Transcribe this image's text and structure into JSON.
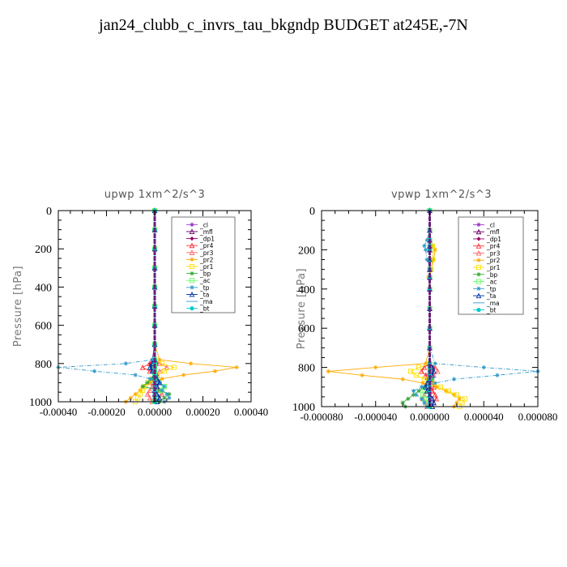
{
  "title": "jan24_clubb_c_invrs_tau_bkgndp  BUDGET at245E,-7N",
  "chart_data": [
    {
      "type": "line",
      "title": "upwp   1xm^2/s^3",
      "ylabel": "Pressure [hPa]",
      "xlabel": "",
      "ylim": [
        1000,
        0
      ],
      "xlim": [
        -0.0004,
        0.0004
      ],
      "xticks": [
        -0.0004,
        -0.0002,
        0,
        0.0002,
        0.0004
      ],
      "xtick_labels": [
        "-0.00040",
        "-0.00020",
        "0.00000",
        "0.00020",
        "0.00040"
      ],
      "yticks": [
        0,
        200,
        400,
        600,
        800,
        1000
      ],
      "ytick_labels": [
        "0",
        "200",
        "400",
        "600",
        "800",
        "1000"
      ],
      "legend_position": "top-right",
      "grid": false,
      "y": [
        0,
        100,
        200,
        300,
        400,
        500,
        600,
        700,
        780,
        800,
        820,
        840,
        860,
        880,
        900,
        920,
        940,
        960,
        980,
        1000
      ],
      "series": [
        {
          "name": "_cl",
          "color": "#9933cc",
          "marker": "star",
          "values": [
            0,
            0,
            0,
            0,
            0,
            0,
            0,
            0,
            0,
            1e-05,
            0,
            -1e-05,
            0,
            0,
            0,
            0,
            0,
            0,
            0,
            0
          ]
        },
        {
          "name": "_mfl",
          "color": "#660066",
          "marker": "triangle",
          "values": [
            0,
            0,
            0,
            0,
            0,
            0,
            0,
            0,
            0,
            0,
            0,
            0,
            0,
            0,
            0,
            0,
            0,
            0,
            0,
            0
          ]
        },
        {
          "name": "_dp1",
          "color": "#990066",
          "marker": "diamond",
          "values": [
            0,
            0,
            0,
            0,
            0,
            0,
            0,
            0,
            -1e-05,
            -2e-05,
            -1e-05,
            0,
            1e-05,
            0,
            0,
            0,
            0,
            0,
            0,
            0
          ]
        },
        {
          "name": "_pr4",
          "color": "#ff3333",
          "marker": "triangle",
          "values": [
            0,
            0,
            0,
            0,
            0,
            0,
            0,
            0,
            0,
            -2e-05,
            -5e-05,
            -2e-05,
            0,
            1e-05,
            2e-05,
            1e-05,
            2e-05,
            3e-05,
            2e-05,
            1e-05
          ]
        },
        {
          "name": "_pr3",
          "color": "#ff6666",
          "marker": "triangle",
          "values": [
            0,
            0,
            0,
            0,
            0,
            0,
            0,
            0,
            0,
            2e-05,
            5e-05,
            2e-05,
            0,
            -1e-05,
            -2e-05,
            -1e-05,
            -2e-05,
            -3e-05,
            -2e-05,
            -1e-05
          ]
        },
        {
          "name": "_pr2",
          "color": "#ffaa00",
          "marker": "star",
          "values": [
            0,
            0,
            0,
            0,
            0,
            0,
            0,
            0,
            2e-05,
            0.00015,
            0.00034,
            0.00025,
            0.00012,
            3e-05,
            -2e-05,
            -5e-05,
            -6e-05,
            -8e-05,
            -0.0001,
            -0.00012
          ]
        },
        {
          "name": "_pr1",
          "color": "#ffdd00",
          "marker": "square",
          "values": [
            0,
            0,
            0,
            0,
            0,
            0,
            0,
            0,
            0,
            3e-05,
            8e-05,
            4e-05,
            1e-05,
            -1e-05,
            -3e-05,
            -4e-05,
            -5e-05,
            -6e-05,
            -7e-05,
            -8e-05
          ]
        },
        {
          "name": "_bp",
          "color": "#33aa33",
          "marker": "star",
          "values": [
            0,
            0,
            0,
            0,
            0,
            0,
            0,
            0,
            0,
            0,
            0,
            0,
            0,
            -1e-05,
            -3e-05,
            -5e-05,
            2e-05,
            6e-05,
            4e-05,
            2e-05
          ]
        },
        {
          "name": "_ac",
          "color": "#66ff66",
          "marker": "square",
          "values": [
            0,
            0,
            0,
            0,
            0,
            0,
            0,
            0,
            0,
            0,
            0,
            0,
            0,
            1e-05,
            2e-05,
            4e-05,
            3e-05,
            2e-05,
            1e-05,
            0
          ]
        },
        {
          "name": "_tp",
          "color": "#3399cc",
          "marker": "star",
          "values": [
            0,
            0,
            0,
            0,
            0,
            0,
            0,
            0,
            -1e-05,
            -0.00012,
            -0.0004,
            -0.00025,
            -8e-05,
            -2e-05,
            2e-05,
            4e-05,
            3e-05,
            5e-05,
            6e-05,
            4e-05
          ]
        },
        {
          "name": "_ta",
          "color": "#0033aa",
          "marker": "triangle",
          "values": [
            0,
            0,
            0,
            0,
            0,
            0,
            0,
            0,
            0,
            -1e-05,
            -2e-05,
            -1e-05,
            0,
            1e-05,
            2e-05,
            1e-05,
            0,
            1e-05,
            2e-05,
            1e-05
          ]
        },
        {
          "name": "_ma",
          "color": "#3399cc",
          "marker": "none",
          "values": [
            0,
            0,
            0,
            0,
            0,
            0,
            0,
            0,
            0,
            0,
            0,
            0,
            0,
            0,
            0,
            0,
            0,
            0,
            0,
            0
          ]
        },
        {
          "name": "_bt",
          "color": "#00cccc",
          "marker": "circle",
          "values": [
            0,
            0,
            0,
            0,
            0,
            0,
            0,
            0,
            0,
            0,
            0,
            0,
            0,
            0,
            0,
            0,
            0,
            0,
            0,
            0
          ]
        }
      ]
    },
    {
      "type": "line",
      "title": "vpwp   1xm^2/s^3",
      "ylabel": "Pressure [hPa]",
      "xlabel": "",
      "ylim": [
        1000,
        0
      ],
      "xlim": [
        -8e-05,
        8e-05
      ],
      "xticks": [
        -8e-05,
        -4e-05,
        0,
        4e-05,
        8e-05
      ],
      "xtick_labels": [
        "-0.000080",
        "-0.000040",
        "0.000000",
        "0.000040",
        "0.000080"
      ],
      "yticks": [
        0,
        200,
        400,
        600,
        800,
        1000
      ],
      "ytick_labels": [
        "0",
        "200",
        "400",
        "600",
        "800",
        "1000"
      ],
      "legend_position": "top-right",
      "grid": false,
      "y": [
        0,
        100,
        150,
        180,
        200,
        250,
        300,
        340,
        400,
        500,
        600,
        700,
        780,
        800,
        820,
        840,
        860,
        880,
        900,
        920,
        940,
        960,
        980,
        1000
      ],
      "series": [
        {
          "name": "_cl",
          "color": "#9933cc",
          "marker": "star",
          "values": [
            0,
            0,
            0,
            0,
            0,
            0,
            0,
            0,
            0,
            0,
            0,
            0,
            0,
            2e-06,
            0,
            -2e-06,
            0,
            0,
            0,
            0,
            0,
            0,
            0,
            0
          ]
        },
        {
          "name": "_mfl",
          "color": "#660066",
          "marker": "triangle",
          "values": [
            0,
            0,
            0,
            0,
            0,
            0,
            0,
            0,
            0,
            0,
            0,
            0,
            0,
            0,
            0,
            0,
            0,
            0,
            0,
            0,
            0,
            0,
            0,
            0
          ]
        },
        {
          "name": "_dp1",
          "color": "#990066",
          "marker": "diamond",
          "values": [
            0,
            0,
            0,
            0,
            0,
            0,
            0,
            0,
            0,
            0,
            0,
            0,
            0,
            3e-06,
            2e-06,
            0,
            -2e-06,
            0,
            0,
            0,
            0,
            0,
            0,
            0
          ]
        },
        {
          "name": "_pr4",
          "color": "#ff3333",
          "marker": "triangle",
          "values": [
            0,
            0,
            0,
            0,
            0,
            0,
            0,
            0,
            0,
            0,
            0,
            0,
            0,
            -4e-06,
            -6e-06,
            -3e-06,
            0,
            2e-06,
            3e-06,
            2e-06,
            4e-06,
            5e-06,
            3e-06,
            2e-06
          ]
        },
        {
          "name": "_pr3",
          "color": "#ff6666",
          "marker": "triangle",
          "values": [
            0,
            0,
            0,
            0,
            0,
            0,
            0,
            0,
            0,
            0,
            0,
            0,
            0,
            4e-06,
            6e-06,
            3e-06,
            0,
            -2e-06,
            -3e-06,
            -2e-06,
            -4e-06,
            -5e-06,
            -3e-06,
            -2e-06
          ]
        },
        {
          "name": "_pr2",
          "color": "#ffaa00",
          "marker": "star",
          "values": [
            0,
            0,
            0,
            2e-06,
            4e-06,
            3e-06,
            1e-06,
            -1e-06,
            0,
            0,
            0,
            0,
            -3e-06,
            -4e-05,
            -7.5e-05,
            -5e-05,
            -2e-05,
            -5e-06,
            5e-06,
            1.2e-05,
            1.8e-05,
            2.2e-05,
            2e-05,
            1.8e-05
          ]
        },
        {
          "name": "_pr1",
          "color": "#ffdd00",
          "marker": "square",
          "values": [
            0,
            0,
            0,
            2e-06,
            3e-06,
            2e-06,
            1e-06,
            0,
            0,
            0,
            0,
            0,
            0,
            -8e-06,
            -1.4e-05,
            -1e-05,
            -4e-06,
            2e-06,
            8e-06,
            1.4e-05,
            2e-05,
            2.6e-05,
            2.4e-05,
            2.2e-05
          ]
        },
        {
          "name": "_bp",
          "color": "#33aa33",
          "marker": "star",
          "values": [
            0,
            0,
            0,
            0,
            0,
            0,
            0,
            0,
            0,
            0,
            0,
            0,
            0,
            0,
            0,
            0,
            2e-06,
            0,
            -4e-06,
            -8e-06,
            -1.2e-05,
            -1.6e-05,
            -2e-05,
            -1.8e-05
          ]
        },
        {
          "name": "_ac",
          "color": "#66ff66",
          "marker": "square",
          "values": [
            0,
            0,
            0,
            0,
            0,
            0,
            0,
            0,
            0,
            0,
            0,
            0,
            0,
            0,
            0,
            0,
            0,
            0,
            -2e-06,
            -4e-06,
            -5e-06,
            -4e-06,
            -2e-06,
            0
          ]
        },
        {
          "name": "_tp",
          "color": "#3399cc",
          "marker": "star",
          "values": [
            0,
            0,
            -2e-06,
            -4e-06,
            -3e-06,
            -2e-06,
            0,
            0,
            0,
            0,
            0,
            0,
            4e-06,
            4e-05,
            8e-05,
            5e-05,
            1.8e-05,
            4e-06,
            -6e-06,
            -1.2e-05,
            -1e-05,
            -6e-06,
            -4e-06,
            -2e-06
          ]
        },
        {
          "name": "_ta",
          "color": "#0033aa",
          "marker": "triangle",
          "values": [
            0,
            0,
            0,
            0,
            0,
            0,
            0,
            0,
            0,
            0,
            0,
            0,
            0,
            2e-06,
            3e-06,
            2e-06,
            0,
            -2e-06,
            -3e-06,
            -2e-06,
            0,
            2e-06,
            3e-06,
            2e-06
          ]
        },
        {
          "name": "_ma",
          "color": "#3399cc",
          "marker": "none",
          "values": [
            0,
            0,
            0,
            0,
            0,
            0,
            0,
            0,
            0,
            0,
            0,
            0,
            0,
            0,
            0,
            0,
            0,
            0,
            0,
            0,
            0,
            0,
            0,
            0
          ]
        },
        {
          "name": "_bt",
          "color": "#00cccc",
          "marker": "circle",
          "values": [
            0,
            0,
            0,
            0,
            0,
            0,
            0,
            0,
            0,
            0,
            0,
            0,
            0,
            0,
            0,
            0,
            0,
            0,
            0,
            0,
            0,
            0,
            0,
            0
          ]
        }
      ]
    }
  ]
}
